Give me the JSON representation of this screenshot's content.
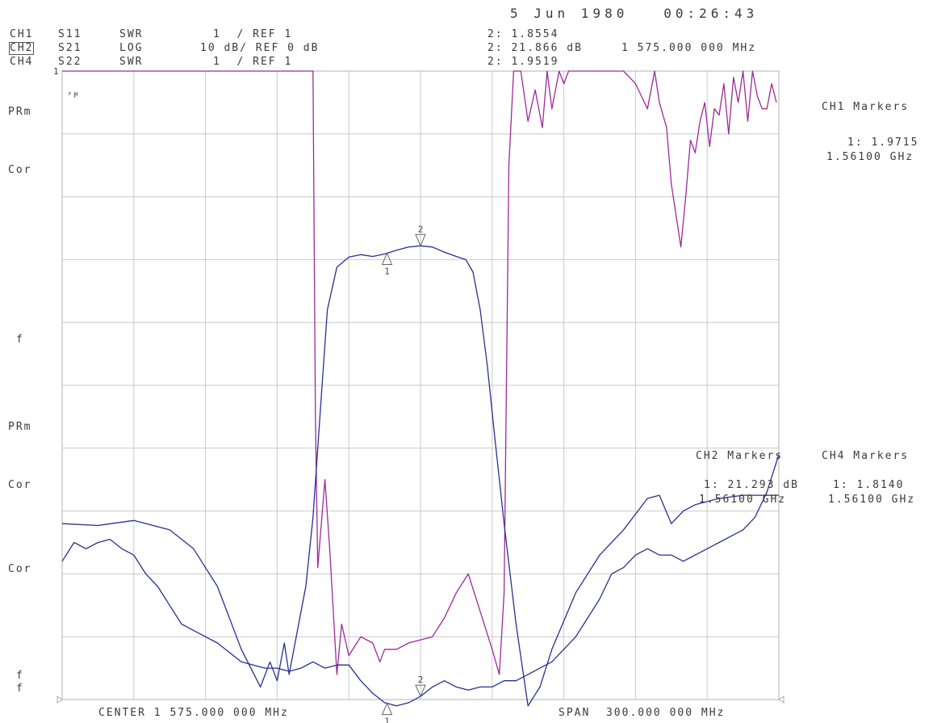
{
  "header": {
    "datetime": "5 Jun 1980   00:26:43",
    "channels": [
      {
        "ch": "CH1",
        "param": "S11",
        "format": "SWR",
        "scale": "1  / REF 1",
        "readout": "2: 1.8554"
      },
      {
        "ch": "CH2",
        "param": "S21",
        "format": "LOG",
        "scale": "10 dB/ REF 0 dB",
        "readout": "2: 21.866 dB"
      },
      {
        "ch": "CH4",
        "param": "S22",
        "format": "SWR",
        "scale": "1  / REF 1",
        "readout": "2: 1.9519"
      }
    ],
    "marker_freq": "1 575.000 000 MHz"
  },
  "left_labels": {
    "prm_top": "PRm",
    "cor_top": "Cor",
    "f_mid": "f",
    "prm_mid": "PRm",
    "cor_mid": "Cor",
    "cor_low": "Cor",
    "f_low1": "f",
    "f_low2": "f",
    "ref1": "1",
    "pp": "ᴾP"
  },
  "ch1_markers": {
    "title": "CH1 Markers",
    "val": "1: 1.9715",
    "freq": "1.56100 GHz"
  },
  "ch2_markers": {
    "title": "CH2 Markers",
    "val": "1: 21.293 dB",
    "freq": "1.56100 GHz"
  },
  "ch4_markers": {
    "title": "CH4 Markers",
    "val": "1: 1.8140",
    "freq": "1.56100 GHz"
  },
  "footer": {
    "center": "CENTER 1 575.000 000 MHz",
    "span": "SPAN  300.000 000 MHz"
  },
  "colors": {
    "purple": "#9c2a98",
    "blue": "#27308f",
    "grid": "#c9c9c9"
  },
  "chart_data": {
    "type": "line",
    "xlabel": "",
    "ylabel": "",
    "xlim": [
      1425,
      1725
    ],
    "grid": true,
    "series": [
      {
        "color": "#9c2a98",
        "trace": "CH1 S11 SWR",
        "x": [
          1425,
          1530,
          1531,
          1532,
          1535,
          1537,
          1540,
          1542,
          1545,
          1550,
          1555,
          1558,
          1560,
          1565,
          1570,
          1575,
          1580,
          1585,
          1590,
          1595,
          1600,
          1605,
          1608,
          1610,
          1612,
          1614,
          1617,
          1620,
          1623,
          1626,
          1628,
          1630,
          1633,
          1635,
          1637,
          1640,
          1643,
          1645,
          1650,
          1655,
          1660,
          1665,
          1670,
          1673,
          1675,
          1678,
          1680,
          1682,
          1684,
          1686,
          1688,
          1690,
          1692,
          1694,
          1696,
          1698,
          1700,
          1702,
          1704,
          1706,
          1708,
          1710,
          1712,
          1714,
          1716,
          1718,
          1720,
          1722,
          1724
        ],
        "y": [
          1,
          1,
          6.5,
          8.9,
          7.5,
          8.6,
          10.6,
          9.8,
          10.3,
          10.0,
          10.1,
          10.4,
          10.2,
          10.2,
          10.1,
          10.05,
          10.0,
          9.7,
          9.3,
          9.0,
          9.6,
          10.2,
          10.6,
          9.3,
          2.5,
          1.0,
          1.0,
          1.8,
          1.3,
          1.9,
          1.0,
          1.6,
          1.0,
          1.2,
          1.0,
          1.0,
          1.0,
          1.0,
          1.0,
          1.0,
          1.0,
          1.2,
          1.6,
          1.0,
          1.5,
          1.9,
          2.8,
          3.3,
          3.8,
          3.0,
          2.1,
          2.3,
          1.8,
          1.5,
          2.2,
          1.6,
          1.7,
          1.2,
          2.0,
          1.1,
          1.5,
          1.0,
          1.8,
          1.0,
          1.4,
          1.6,
          1.6,
          1.2,
          1.5
        ]
      },
      {
        "color": "#27308f",
        "trace": "CH2 S21 LOG",
        "x": [
          1425,
          1440,
          1455,
          1470,
          1480,
          1490,
          1500,
          1508,
          1512,
          1515,
          1518,
          1520,
          1524,
          1527,
          1530,
          1532,
          1534,
          1536,
          1540,
          1545,
          1550,
          1555,
          1560,
          1565,
          1570,
          1575,
          1580,
          1585,
          1590,
          1594,
          1597,
          1600,
          1603,
          1606,
          1610,
          1615,
          1620,
          1625,
          1630,
          1640,
          1650,
          1660,
          1670,
          1675,
          1680,
          1685,
          1690,
          1700,
          1710,
          1725
        ],
        "y": [
          -42.0,
          -42.3,
          -41.5,
          -43.0,
          -46.0,
          -52.0,
          -62.0,
          -68.0,
          -64.0,
          -67.0,
          -61.0,
          -66.0,
          -58.0,
          -52.0,
          -41.0,
          -30.0,
          -19.0,
          -8.0,
          -1.2,
          0.4,
          0.8,
          0.5,
          0.9,
          1.5,
          2.0,
          2.2,
          2.0,
          1.2,
          0.5,
          0.0,
          -2.0,
          -8.0,
          -17.0,
          -28.0,
          -42.0,
          -58.0,
          -71.0,
          -68.0,
          -62.0,
          -53.0,
          -47.0,
          -43.0,
          -38.0,
          -37.5,
          -42.0,
          -40.0,
          -39.0,
          -38.0,
          -37.5,
          -37.5
        ]
      },
      {
        "color": "#27308f",
        "trace": "CH4 S22 SWR",
        "x": [
          1425,
          1430,
          1435,
          1440,
          1445,
          1450,
          1455,
          1460,
          1465,
          1470,
          1475,
          1480,
          1485,
          1490,
          1495,
          1500,
          1505,
          1510,
          1515,
          1520,
          1525,
          1530,
          1535,
          1540,
          1545,
          1550,
          1555,
          1560,
          1565,
          1570,
          1575,
          1580,
          1585,
          1590,
          1595,
          1600,
          1605,
          1610,
          1615,
          1620,
          1625,
          1630,
          1635,
          1640,
          1645,
          1650,
          1655,
          1660,
          1665,
          1670,
          1675,
          1680,
          1685,
          1690,
          1695,
          1700,
          1705,
          1710,
          1715,
          1720,
          1725
        ],
        "y": [
          3.2,
          3.5,
          3.4,
          3.5,
          3.55,
          3.4,
          3.3,
          3.0,
          2.8,
          2.5,
          2.2,
          2.1,
          2.0,
          1.9,
          1.75,
          1.6,
          1.55,
          1.5,
          1.5,
          1.45,
          1.5,
          1.6,
          1.5,
          1.55,
          1.55,
          1.3,
          1.1,
          0.95,
          0.9,
          0.95,
          1.05,
          1.2,
          1.3,
          1.2,
          1.15,
          1.2,
          1.2,
          1.3,
          1.3,
          1.4,
          1.5,
          1.6,
          1.8,
          2.0,
          2.3,
          2.6,
          3.0,
          3.1,
          3.3,
          3.4,
          3.3,
          3.3,
          3.2,
          3.3,
          3.4,
          3.5,
          3.6,
          3.7,
          3.9,
          4.3,
          4.9
        ]
      }
    ],
    "markers": [
      {
        "label": "1",
        "x": 1561,
        "trace": "CH2"
      },
      {
        "label": "2",
        "x": 1575,
        "trace": "CH2"
      },
      {
        "label": "1",
        "x": 1561,
        "trace": "CH4"
      },
      {
        "label": "2",
        "x": 1575,
        "trace": "CH4"
      }
    ]
  }
}
